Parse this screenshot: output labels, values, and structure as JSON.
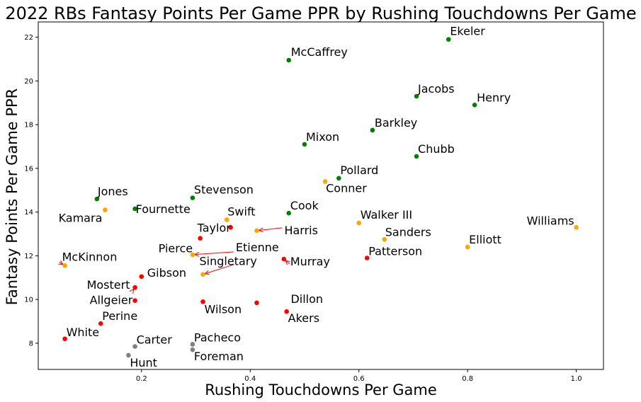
{
  "chart_data": {
    "type": "scatter",
    "title": "2022 RBs Fantasy Points Per Game PPR by Rushing Touchdowns Per Game",
    "xlabel": "Rushing Touchdowns Per Game",
    "ylabel": "Fantasy Points Per Game PPR",
    "xlim": [
      0.01,
      1.05
    ],
    "ylim": [
      6.8,
      22.7
    ],
    "xticks": [
      0.2,
      0.4,
      0.6,
      0.8,
      1.0
    ],
    "xtick_labels": [
      "0.2",
      "0.4",
      "0.6",
      "0.8",
      "1.0"
    ],
    "yticks": [
      8,
      10,
      12,
      14,
      16,
      18,
      20,
      22
    ],
    "ytick_labels": [
      "8",
      "10",
      "12",
      "14",
      "16",
      "18",
      "20",
      "22"
    ],
    "grid": false,
    "colors": {
      "green": "#008000",
      "orange": "#ffa500",
      "red": "#ff0000",
      "gray": "#808080"
    },
    "points": [
      {
        "name": "Ekeler",
        "x": 0.765,
        "y": 21.9,
        "color": "green"
      },
      {
        "name": "McCaffrey",
        "x": 0.471,
        "y": 20.95,
        "color": "green"
      },
      {
        "name": "Jacobs",
        "x": 0.706,
        "y": 19.3,
        "color": "green"
      },
      {
        "name": "Henry",
        "x": 0.813,
        "y": 18.9,
        "color": "green"
      },
      {
        "name": "Barkley",
        "x": 0.625,
        "y": 17.75,
        "color": "green"
      },
      {
        "name": "Mixon",
        "x": 0.5,
        "y": 17.1,
        "color": "green"
      },
      {
        "name": "Chubb",
        "x": 0.706,
        "y": 16.55,
        "color": "green"
      },
      {
        "name": "Pollard",
        "x": 0.563,
        "y": 15.55,
        "color": "green"
      },
      {
        "name": "Conner",
        "x": 0.538,
        "y": 15.4,
        "color": "orange"
      },
      {
        "name": "Jones",
        "x": 0.118,
        "y": 14.6,
        "color": "green"
      },
      {
        "name": "Stevenson",
        "x": 0.294,
        "y": 14.65,
        "color": "green"
      },
      {
        "name": "Kamara",
        "x": 0.133,
        "y": 14.1,
        "color": "orange"
      },
      {
        "name": "Fournette",
        "x": 0.188,
        "y": 14.15,
        "color": "green"
      },
      {
        "name": "Cook",
        "x": 0.471,
        "y": 13.95,
        "color": "green"
      },
      {
        "name": "Swift",
        "x": 0.357,
        "y": 13.65,
        "color": "orange"
      },
      {
        "name": "Walker III",
        "x": 0.6,
        "y": 13.5,
        "color": "orange"
      },
      {
        "name": "Williams",
        "x": 1.0,
        "y": 13.3,
        "color": "orange"
      },
      {
        "name": "Taylor",
        "x": 0.364,
        "y": 13.3,
        "color": "red"
      },
      {
        "name": "Harris",
        "x": 0.412,
        "y": 13.15,
        "color": "orange"
      },
      {
        "name": "Sanders",
        "x": 0.647,
        "y": 12.75,
        "color": "orange"
      },
      {
        "name": "Pierce",
        "x": 0.308,
        "y": 12.8,
        "color": "red"
      },
      {
        "name": "Elliott",
        "x": 0.8,
        "y": 12.4,
        "color": "orange"
      },
      {
        "name": "Etienne",
        "x": 0.294,
        "y": 12.05,
        "color": "orange"
      },
      {
        "name": "Patterson",
        "x": 0.615,
        "y": 11.9,
        "color": "red"
      },
      {
        "name": "Murray",
        "x": 0.462,
        "y": 11.85,
        "color": "red"
      },
      {
        "name": "McKinnon",
        "x": 0.059,
        "y": 11.55,
        "color": "orange"
      },
      {
        "name": "Singletary",
        "x": 0.313,
        "y": 11.15,
        "color": "orange"
      },
      {
        "name": "Gibson",
        "x": 0.2,
        "y": 11.05,
        "color": "red"
      },
      {
        "name": "Mostert",
        "x": 0.188,
        "y": 10.55,
        "color": "red"
      },
      {
        "name": "Allgeier",
        "x": 0.188,
        "y": 9.95,
        "color": "red"
      },
      {
        "name": "Wilson",
        "x": 0.313,
        "y": 9.9,
        "color": "red"
      },
      {
        "name": "Dillon",
        "x": 0.412,
        "y": 9.85,
        "color": "red"
      },
      {
        "name": "Akers",
        "x": 0.467,
        "y": 9.45,
        "color": "red"
      },
      {
        "name": "Perine",
        "x": 0.125,
        "y": 8.9,
        "color": "red"
      },
      {
        "name": "White",
        "x": 0.059,
        "y": 8.2,
        "color": "red"
      },
      {
        "name": "Carter",
        "x": 0.188,
        "y": 7.85,
        "color": "gray"
      },
      {
        "name": "Pacheco",
        "x": 0.294,
        "y": 7.95,
        "color": "gray"
      },
      {
        "name": "Foreman",
        "x": 0.294,
        "y": 7.7,
        "color": "gray"
      },
      {
        "name": "Hunt",
        "x": 0.176,
        "y": 7.45,
        "color": "gray"
      }
    ]
  }
}
